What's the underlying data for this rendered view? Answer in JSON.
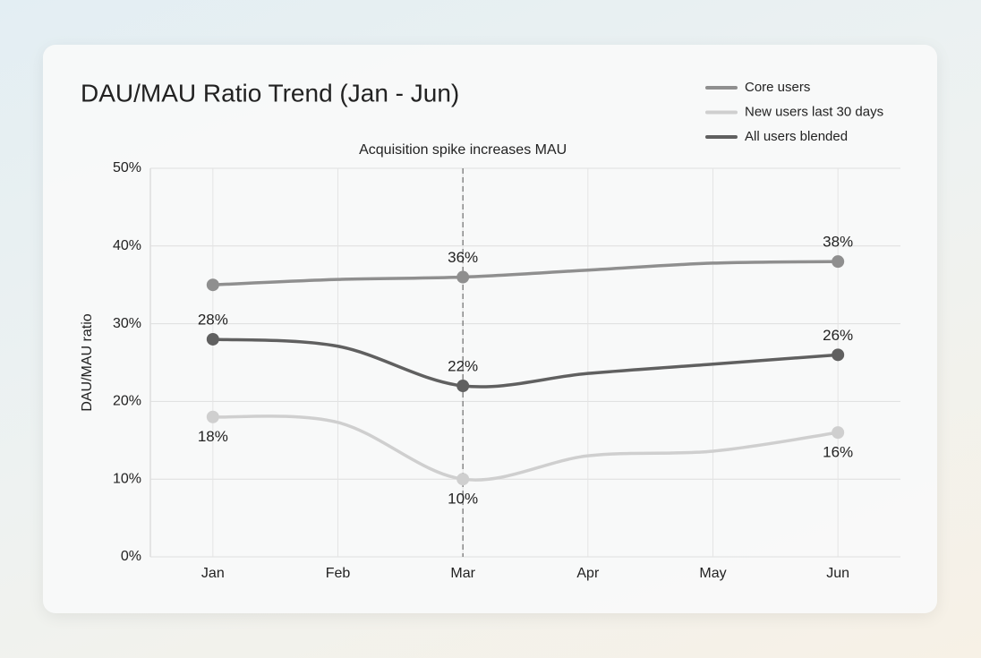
{
  "chart_data": {
    "type": "line",
    "title": "DAU/MAU Ratio Trend (Jan - Jun)",
    "y_label": "DAU/MAU ratio",
    "categories": [
      "Jan",
      "Feb",
      "Mar",
      "Apr",
      "May",
      "Jun"
    ],
    "series": [
      {
        "name": "Core users",
        "color": "#8f8f8f",
        "values": [
          35,
          35.7,
          36,
          36.9,
          37.8,
          38
        ],
        "value_labels": [
          null,
          null,
          "36%",
          null,
          null,
          "38%"
        ],
        "label_position": "above"
      },
      {
        "name": "New users last 30 days",
        "color": "#cfcfcf",
        "values": [
          18,
          17.3,
          10,
          13,
          13.6,
          16
        ],
        "value_labels": [
          "18%",
          null,
          "10%",
          null,
          null,
          "16%"
        ],
        "label_position": "below"
      },
      {
        "name": "All users blended",
        "color": "#606060",
        "values": [
          28,
          27.1,
          22,
          23.6,
          24.8,
          26
        ],
        "value_labels": [
          "28%",
          null,
          "22%",
          null,
          null,
          "26%"
        ],
        "label_position": "above"
      }
    ],
    "marker_indices": [
      0,
      2,
      5
    ],
    "annotation": {
      "text": "Acquisition spike increases MAU",
      "category": "Mar"
    },
    "ylim": [
      0,
      50
    ],
    "yticks": [
      {
        "value": 0,
        "label": "0%"
      },
      {
        "value": 10,
        "label": "10%"
      },
      {
        "value": 20,
        "label": "20%"
      },
      {
        "value": 30,
        "label": "30%"
      },
      {
        "value": 40,
        "label": "40%"
      },
      {
        "value": 50,
        "label": "50%"
      }
    ],
    "grid": true,
    "legend": "top-right"
  }
}
